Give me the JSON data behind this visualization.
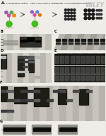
{
  "bg_color": "#f0ede8",
  "panel_A_bg": "#e8e4dc",
  "wiley_text": "WILEY",
  "step1_colors": [
    "#9955bb",
    "#cc5599",
    "#55aa55",
    "#ee8800"
  ],
  "step2_colors": [
    "#9955bb",
    "#cc5599",
    "#5588cc",
    "#dd7700"
  ],
  "arrow_color": "#555555",
  "green_bead": "#44bb22",
  "panel_B_bg": "#c8c8c4",
  "panel_C_bg": "#a8a8a4",
  "panel_D_bg": "#c0bfba",
  "panel_E_bg": "#606060",
  "panel_F_bg": "#b8b4ac",
  "panel_G_bg": "#c8c4bc",
  "dark_band": "#101010",
  "mid_band": "#484844",
  "light_lane": "#d8d4cc",
  "dark_lane": "#282820"
}
